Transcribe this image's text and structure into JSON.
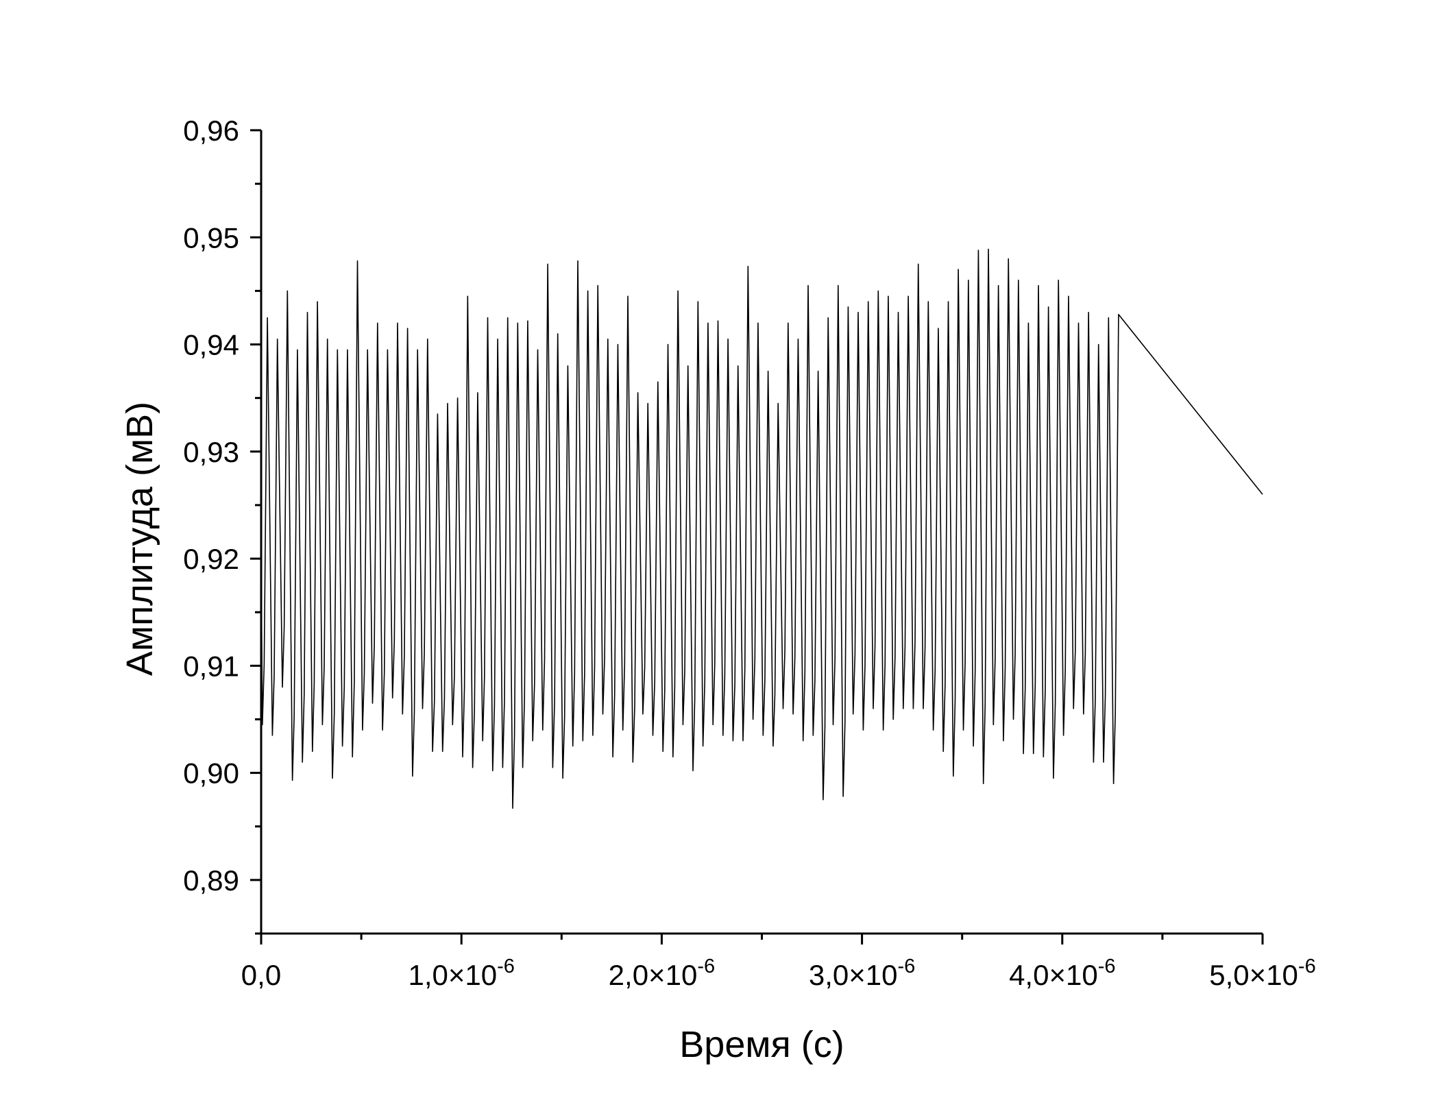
{
  "chart_data": {
    "type": "line",
    "title": "",
    "xlabel": "Время (с)",
    "ylabel": "Амплитуда (мВ)",
    "xlim": [
      0,
      5e-06
    ],
    "ylim": [
      0.885,
      0.96
    ],
    "grid": false,
    "legend": "none",
    "line_color": "#000000",
    "x_ticks": [
      {
        "value": 0,
        "mantissa": "0,0",
        "exp": ""
      },
      {
        "value": 1e-06,
        "mantissa": "1,0×10",
        "exp": "-6"
      },
      {
        "value": 2e-06,
        "mantissa": "2,0×10",
        "exp": "-6"
      },
      {
        "value": 3e-06,
        "mantissa": "3,0×10",
        "exp": "-6"
      },
      {
        "value": 4e-06,
        "mantissa": "4,0×10",
        "exp": "-6"
      },
      {
        "value": 5e-06,
        "mantissa": "5,0×10",
        "exp": "-6"
      }
    ],
    "y_ticks": [
      {
        "value": 0.89,
        "label": "0,89"
      },
      {
        "value": 0.9,
        "label": "0,90"
      },
      {
        "value": 0.91,
        "label": "0,91"
      },
      {
        "value": 0.92,
        "label": "0,92"
      },
      {
        "value": 0.93,
        "label": "0,93"
      },
      {
        "value": 0.94,
        "label": "0,94"
      },
      {
        "value": 0.95,
        "label": "0,95"
      },
      {
        "value": 0.96,
        "label": "0,96"
      }
    ],
    "series": [
      {
        "period_s": 5e-08,
        "peaks": [
          0.9425,
          0.9405,
          0.945,
          0.9395,
          0.943,
          0.944,
          0.9405,
          0.9395,
          0.9395,
          0.9478,
          0.9395,
          0.942,
          0.9395,
          0.942,
          0.9415,
          0.9395,
          0.9405,
          0.9335,
          0.9345,
          0.935,
          0.9445,
          0.9355,
          0.9425,
          0.9405,
          0.9425,
          0.942,
          0.9422,
          0.9395,
          0.9475,
          0.941,
          0.938,
          0.9478,
          0.945,
          0.9455,
          0.9405,
          0.94,
          0.9445,
          0.9355,
          0.9345,
          0.9365,
          0.94,
          0.945,
          0.938,
          0.944,
          0.942,
          0.9422,
          0.9405,
          0.938,
          0.9473,
          0.942,
          0.9375,
          0.9345,
          0.942,
          0.9405,
          0.9455,
          0.9375,
          0.9425,
          0.9455,
          0.9435,
          0.943,
          0.944,
          0.945,
          0.9445,
          0.943,
          0.9445,
          0.9475,
          0.944,
          0.9415,
          0.944,
          0.947,
          0.946,
          0.9488,
          0.9489,
          0.9455,
          0.948,
          0.946,
          0.942,
          0.9455,
          0.9435,
          0.946,
          0.9445,
          0.942,
          0.943,
          0.94,
          0.9425,
          0.9428
        ],
        "troughs": [
          0.9045,
          0.9035,
          0.908,
          0.8993,
          0.901,
          0.902,
          0.9045,
          0.8995,
          0.9025,
          0.9015,
          0.904,
          0.9065,
          0.904,
          0.907,
          0.9055,
          0.8997,
          0.906,
          0.902,
          0.902,
          0.9045,
          0.9015,
          0.9005,
          0.903,
          0.9002,
          0.9005,
          0.8967,
          0.9005,
          0.903,
          0.904,
          0.9005,
          0.8995,
          0.9025,
          0.903,
          0.9035,
          0.9055,
          0.9015,
          0.904,
          0.901,
          0.9055,
          0.9035,
          0.902,
          0.9015,
          0.9045,
          0.9002,
          0.9025,
          0.9045,
          0.9035,
          0.903,
          0.903,
          0.905,
          0.9035,
          0.9025,
          0.906,
          0.9055,
          0.903,
          0.9035,
          0.8975,
          0.9045,
          0.8978,
          0.9055,
          0.904,
          0.906,
          0.904,
          0.905,
          0.906,
          0.906,
          0.906,
          0.904,
          0.902,
          0.8997,
          0.904,
          0.9025,
          0.899,
          0.9045,
          0.903,
          0.905,
          0.9018,
          0.9018,
          0.9015,
          0.8995,
          0.9035,
          0.906,
          0.9055,
          0.901,
          0.901,
          0.899
        ],
        "last_value": 0.926
      }
    ]
  }
}
